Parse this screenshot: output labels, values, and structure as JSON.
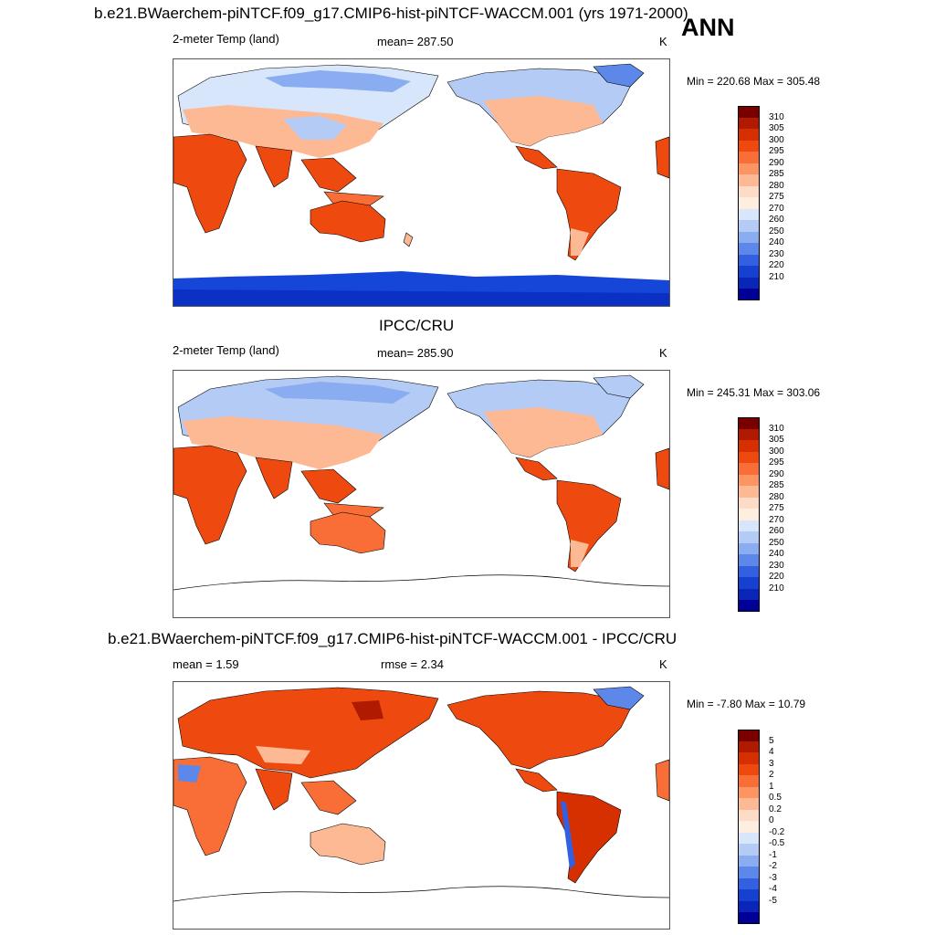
{
  "title": "b.e21.BWaerchem-piNTCF.f09_g17.CMIP6-hist-piNTCF-WACCM.001 (yrs 1971-2000)",
  "season": "ANN",
  "panels": [
    {
      "variable": "2-meter Temp (land)",
      "stat": "mean= 287.50",
      "units": "K",
      "minmax": "Min = 220.68 Max = 305.48",
      "colorbar": {
        "labels": [
          "310",
          "305",
          "300",
          "295",
          "290",
          "285",
          "280",
          "275",
          "270",
          "260",
          "250",
          "240",
          "230",
          "220",
          "210"
        ],
        "colors": [
          "#7a0000",
          "#b01a00",
          "#d62f00",
          "#ee4a0f",
          "#f86e36",
          "#fc9562",
          "#fdb894",
          "#fddbc7",
          "#fdeedf",
          "#d8e6fb",
          "#b4ccf5",
          "#8aacf0",
          "#5d88ea",
          "#3360e0",
          "#1640d0",
          "#0a26b8",
          "#000096"
        ]
      }
    },
    {
      "heading": "IPCC/CRU",
      "variable": "2-meter Temp (land)",
      "stat": "mean= 285.90",
      "units": "K",
      "minmax": "Min = 245.31 Max = 303.06",
      "colorbar": {
        "labels": [
          "310",
          "305",
          "300",
          "295",
          "290",
          "285",
          "280",
          "275",
          "270",
          "260",
          "250",
          "240",
          "230",
          "220",
          "210"
        ],
        "colors": [
          "#7a0000",
          "#b01a00",
          "#d62f00",
          "#ee4a0f",
          "#f86e36",
          "#fc9562",
          "#fdb894",
          "#fddbc7",
          "#fdeedf",
          "#d8e6fb",
          "#b4ccf5",
          "#8aacf0",
          "#5d88ea",
          "#3360e0",
          "#1640d0",
          "#0a26b8",
          "#000096"
        ]
      }
    },
    {
      "heading": "b.e21.BWaerchem-piNTCF.f09_g17.CMIP6-hist-piNTCF-WACCM.001 - IPCC/CRU",
      "variable": "mean =   1.59",
      "stat": "rmse =   2.34",
      "units": "K",
      "minmax": "Min =  -7.80 Max =  10.79",
      "colorbar": {
        "labels": [
          "5",
          "4",
          "3",
          "2",
          "1",
          "0.5",
          "0.2",
          "0",
          "-0.2",
          "-0.5",
          "-1",
          "-2",
          "-3",
          "-4",
          "-5"
        ],
        "colors": [
          "#7a0000",
          "#b01a00",
          "#d62f00",
          "#ee4a0f",
          "#f86e36",
          "#fc9562",
          "#fdb894",
          "#fddbc7",
          "#fdeedf",
          "#d8e6fb",
          "#b4ccf5",
          "#8aacf0",
          "#5d88ea",
          "#3360e0",
          "#1640d0",
          "#0a26b8",
          "#000096"
        ]
      }
    }
  ]
}
